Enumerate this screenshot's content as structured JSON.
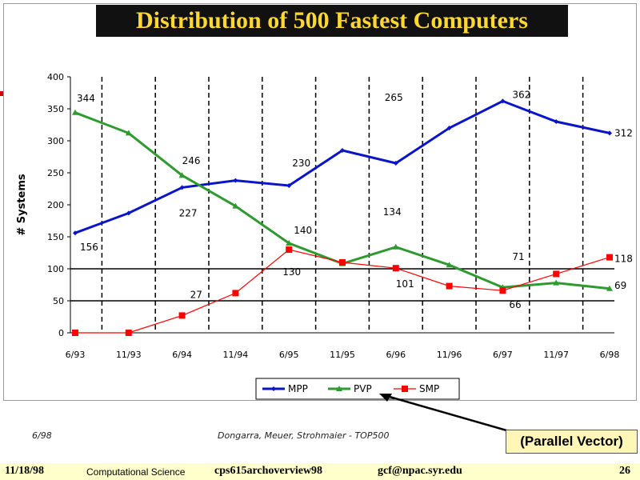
{
  "slide": {
    "title": "Distribution of 500 Fastest Computers",
    "date_note": "6/98",
    "source_note": "Dongarra, Meuer, Strohmaier - TOP500",
    "callout": "(Parallel Vector)",
    "footer": {
      "date": "11/18/98",
      "course": "Computational Science",
      "file": "cps615archoverview98",
      "email": "gcf@npac.syr.edu",
      "page": "26"
    }
  },
  "chart_data": {
    "type": "line",
    "ylabel": "# Systems",
    "ylim": [
      0,
      400
    ],
    "yticks": [
      0,
      50,
      100,
      150,
      200,
      250,
      300,
      350,
      400
    ],
    "categories": [
      "6/93",
      "11/93",
      "6/94",
      "11/94",
      "6/95",
      "11/95",
      "6/96",
      "11/96",
      "6/97",
      "11/97",
      "6/98"
    ],
    "legend_position": "bottom",
    "series": [
      {
        "name": "MPP",
        "color": "#0a14c8",
        "marker": "diamond",
        "values": [
          156,
          187,
          227,
          238,
          230,
          285,
          265,
          320,
          362,
          330,
          312
        ]
      },
      {
        "name": "PVP",
        "color": "#2f9a2f",
        "marker": "triangle",
        "values": [
          344,
          312,
          246,
          198,
          140,
          108,
          134,
          106,
          71,
          78,
          69
        ]
      },
      {
        "name": "SMP",
        "color": "#ff0000",
        "marker": "square",
        "values": [
          0,
          0,
          27,
          62,
          130,
          110,
          101,
          73,
          66,
          92,
          118
        ]
      }
    ],
    "data_labels": [
      {
        "series": "PVP",
        "index": 0,
        "text": "344"
      },
      {
        "series": "PVP",
        "index": 2,
        "text": "246"
      },
      {
        "series": "MPP",
        "index": 0,
        "text": "156"
      },
      {
        "series": "MPP",
        "index": 2,
        "text": "227"
      },
      {
        "series": "MPP",
        "index": 4,
        "text": "230"
      },
      {
        "series": "MPP",
        "index": 6,
        "text": "265"
      },
      {
        "series": "MPP",
        "index": 8,
        "text": "362"
      },
      {
        "series": "MPP",
        "index": 10,
        "text": "312"
      },
      {
        "series": "PVP",
        "index": 4,
        "text": "140"
      },
      {
        "series": "SMP",
        "index": 4,
        "text": "130"
      },
      {
        "series": "PVP",
        "index": 6,
        "text": "134"
      },
      {
        "series": "SMP",
        "index": 6,
        "text": "101"
      },
      {
        "series": "PVP",
        "index": 8,
        "text": "71"
      },
      {
        "series": "SMP",
        "index": 8,
        "text": "66"
      },
      {
        "series": "SMP",
        "index": 2,
        "text": "27"
      },
      {
        "series": "SMP",
        "index": 10,
        "text": "118"
      },
      {
        "series": "PVP",
        "index": 10,
        "text": "69"
      }
    ]
  }
}
